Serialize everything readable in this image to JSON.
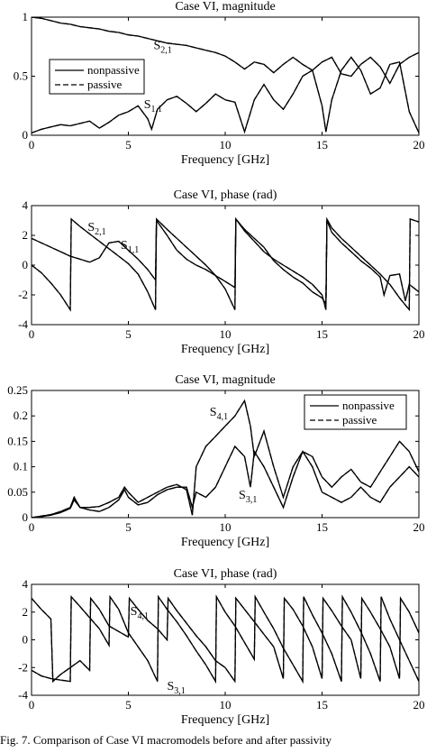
{
  "chart_data": [
    {
      "type": "line",
      "title": "Case VI, magnitude",
      "xlabel": "Frequency [GHz]",
      "ylabel": "",
      "xlim": [
        0,
        20
      ],
      "ylim": [
        0,
        1
      ],
      "xticks": [
        "0",
        "5",
        "10",
        "15",
        "20"
      ],
      "yticks": [
        "0",
        "0.5",
        "1"
      ],
      "legend": {
        "placement": "middle-left",
        "entries": [
          "nonpassive",
          "passive"
        ]
      },
      "annotations": [
        {
          "main": "S",
          "sub": "2,1",
          "x": 6.3,
          "y": 0.73
        },
        {
          "main": "S",
          "sub": "1,1",
          "x": 5.8,
          "y": 0.23
        }
      ],
      "series": [
        {
          "name": "nonpassive",
          "x": [
            0,
            0.5,
            1,
            1.5,
            2,
            2.5,
            3,
            3.5,
            4,
            4.5,
            5,
            5.5,
            6,
            6.5,
            7,
            7.5,
            8,
            8.5,
            9,
            9.5,
            10,
            10.5,
            11,
            11.5,
            12,
            12.5,
            13,
            13.5,
            14,
            14.5,
            15,
            15.5,
            16,
            16.5,
            17,
            17.5,
            18,
            18.5,
            19,
            19.5,
            20
          ],
          "y": [
            1,
            0.99,
            0.97,
            0.95,
            0.94,
            0.92,
            0.91,
            0.9,
            0.88,
            0.87,
            0.85,
            0.84,
            0.82,
            0.8,
            0.78,
            0.77,
            0.76,
            0.74,
            0.72,
            0.7,
            0.67,
            0.62,
            0.56,
            0.62,
            0.6,
            0.53,
            0.6,
            0.66,
            0.6,
            0.55,
            0.62,
            0.66,
            0.52,
            0.5,
            0.6,
            0.66,
            0.58,
            0.44,
            0.6,
            0.66,
            0.7
          ]
        },
        {
          "name": "nonpassive",
          "x": [
            0,
            0.5,
            1,
            1.5,
            2,
            2.5,
            3,
            3.5,
            4,
            4.5,
            5,
            5.5,
            6,
            6.2,
            6.5,
            7,
            7.5,
            8,
            8.5,
            9,
            9.5,
            10,
            10.5,
            11,
            11.5,
            12,
            12.5,
            13,
            13.5,
            14,
            14.5,
            15,
            15.2,
            15.5,
            16,
            16.5,
            17,
            17.5,
            18,
            18.5,
            19,
            19.5,
            20
          ],
          "y": [
            0.02,
            0.05,
            0.07,
            0.09,
            0.08,
            0.1,
            0.12,
            0.06,
            0.11,
            0.17,
            0.2,
            0.25,
            0.14,
            0.05,
            0.22,
            0.3,
            0.33,
            0.27,
            0.2,
            0.27,
            0.35,
            0.3,
            0.28,
            0.03,
            0.3,
            0.43,
            0.3,
            0.22,
            0.35,
            0.5,
            0.55,
            0.25,
            0.03,
            0.3,
            0.55,
            0.66,
            0.55,
            0.35,
            0.4,
            0.6,
            0.62,
            0.2,
            0.02
          ]
        }
      ]
    },
    {
      "type": "line",
      "title": "Case VI, phase (rad)",
      "xlabel": "Frequency [GHz]",
      "ylabel": "",
      "xlim": [
        0,
        20
      ],
      "ylim": [
        -4,
        4
      ],
      "xticks": [
        "0",
        "5",
        "10",
        "15",
        "20"
      ],
      "yticks": [
        "-4",
        "-2",
        "0",
        "2",
        "4"
      ],
      "legend": null,
      "annotations": [
        {
          "main": "S",
          "sub": "2,1",
          "x": 2.9,
          "y": 2.3
        },
        {
          "main": "S",
          "sub": "1,1",
          "x": 4.6,
          "y": 1.1
        }
      ],
      "series": [
        {
          "name": "nonpassive",
          "x": [
            0,
            0.5,
            1,
            1.5,
            2,
            2.05,
            2.5,
            3,
            3.5,
            4,
            4.5,
            5,
            5.5,
            6,
            6.4,
            6.45,
            7,
            7.5,
            8,
            8.5,
            9,
            9.5,
            10,
            10.5,
            10.55,
            11,
            11.5,
            12,
            12.5,
            13,
            13.5,
            14,
            14.5,
            15,
            15.2,
            15.25,
            15.5,
            16,
            16.5,
            17,
            17.5,
            18,
            18.5,
            19,
            19.5,
            19.55,
            20
          ],
          "y": [
            0,
            -0.5,
            -1.2,
            -2,
            -3,
            3.1,
            2.6,
            2.1,
            1.6,
            1.1,
            0.6,
            0.1,
            -0.6,
            -1.8,
            -3,
            3.1,
            2.4,
            1.8,
            1.2,
            0.6,
            0,
            -0.7,
            -1.6,
            -3,
            3.1,
            2.3,
            1.6,
            0.9,
            0.4,
            0,
            -0.4,
            -0.8,
            -1.3,
            -2,
            -3,
            3.1,
            2.5,
            1.8,
            1.2,
            0.6,
            0,
            -0.6,
            -1.3,
            -2.2,
            -3,
            3.1,
            2.9
          ]
        },
        {
          "name": "nonpassive",
          "x": [
            0,
            0.5,
            1,
            1.5,
            2,
            2.5,
            3,
            3.5,
            4,
            4.5,
            5,
            5.5,
            6,
            6.4,
            6.45,
            7,
            7.5,
            8,
            8.5,
            9,
            9.5,
            10,
            10.5,
            10.55,
            11,
            11.5,
            12,
            12.5,
            13,
            13.5,
            14,
            14.5,
            15,
            15.2,
            15.25,
            15.5,
            16,
            16.5,
            17,
            17.5,
            18,
            18.2,
            18.5,
            19,
            19.3,
            19.5,
            20
          ],
          "y": [
            1.8,
            1.5,
            1.2,
            0.9,
            0.6,
            0.4,
            0.2,
            0.5,
            1.5,
            1.6,
            1.0,
            0.4,
            -0.3,
            -1.0,
            3.0,
            2.0,
            1.0,
            0.4,
            0,
            -0.3,
            -0.7,
            -1.1,
            -1.5,
            3.1,
            2.4,
            1.8,
            1.2,
            0.3,
            -0.3,
            -0.8,
            -1.2,
            -1.8,
            -2.2,
            -2.6,
            3.0,
            2.2,
            1.5,
            0.9,
            0.3,
            -0.2,
            -0.8,
            -2.0,
            -0.7,
            -0.6,
            -2.4,
            -1.3,
            -1.8
          ]
        }
      ]
    },
    {
      "type": "line",
      "title": "Case VI, magnitude",
      "xlabel": "Frequency [GHz]",
      "ylabel": "",
      "xlim": [
        0,
        20
      ],
      "ylim": [
        0,
        0.25
      ],
      "xticks": [
        "0",
        "5",
        "10",
        "15",
        "20"
      ],
      "yticks": [
        "0",
        "0.05",
        "0.1",
        "0.15",
        "0.2",
        "0.25"
      ],
      "legend": {
        "placement": "top-right",
        "entries": [
          "nonpassive",
          "passive"
        ]
      },
      "annotations": [
        {
          "main": "S",
          "sub": "4,1",
          "x": 9.2,
          "y": 0.2
        },
        {
          "main": "S",
          "sub": "3,1",
          "x": 10.7,
          "y": 0.037
        }
      ],
      "series": [
        {
          "name": "nonpassive",
          "x": [
            0,
            0.5,
            1,
            1.5,
            2,
            2.2,
            2.5,
            3,
            3.5,
            4,
            4.5,
            4.8,
            5,
            5.5,
            6,
            6.5,
            7,
            7.5,
            8,
            8.3,
            8.5,
            9,
            9.5,
            10,
            10.5,
            11,
            11.3,
            11.5,
            12,
            12.5,
            13,
            13.5,
            14,
            14.5,
            15,
            15.5,
            16,
            16.5,
            17,
            17.5,
            18,
            18.5,
            19,
            19.5,
            20
          ],
          "y": [
            0,
            0.003,
            0.006,
            0.012,
            0.02,
            0.04,
            0.02,
            0.02,
            0.022,
            0.03,
            0.04,
            0.06,
            0.05,
            0.03,
            0.04,
            0.05,
            0.06,
            0.065,
            0.055,
            0.005,
            0.1,
            0.14,
            0.16,
            0.18,
            0.2,
            0.23,
            0.18,
            0.12,
            0.17,
            0.1,
            0.04,
            0.1,
            0.13,
            0.12,
            0.08,
            0.06,
            0.08,
            0.095,
            0.07,
            0.06,
            0.09,
            0.12,
            0.15,
            0.13,
            0.09
          ]
        },
        {
          "name": "nonpassive",
          "x": [
            0,
            0.5,
            1,
            1.5,
            2,
            2.2,
            2.5,
            3,
            3.5,
            4,
            4.5,
            4.8,
            5,
            5.5,
            6,
            6.5,
            7,
            7.5,
            8,
            8.3,
            8.5,
            9,
            9.5,
            10,
            10.5,
            11,
            11.3,
            11.5,
            12,
            12.5,
            13,
            13.5,
            14,
            14.5,
            15,
            15.5,
            16,
            16.5,
            17,
            17.5,
            18,
            18.5,
            19,
            19.5,
            20
          ],
          "y": [
            0,
            0.002,
            0.005,
            0.01,
            0.018,
            0.035,
            0.02,
            0.015,
            0.012,
            0.02,
            0.035,
            0.055,
            0.04,
            0.025,
            0.03,
            0.045,
            0.055,
            0.06,
            0.06,
            0.02,
            0.05,
            0.04,
            0.06,
            0.1,
            0.14,
            0.12,
            0.06,
            0.13,
            0.1,
            0.06,
            0.02,
            0.08,
            0.13,
            0.1,
            0.05,
            0.04,
            0.03,
            0.04,
            0.06,
            0.04,
            0.03,
            0.06,
            0.08,
            0.1,
            0.08
          ]
        }
      ]
    },
    {
      "type": "line",
      "title": "Case VI, phase (rad)",
      "xlabel": "Frequency [GHz]",
      "ylabel": "",
      "xlim": [
        0,
        20
      ],
      "ylim": [
        -4,
        4
      ],
      "xticks": [
        "0",
        "5",
        "10",
        "15",
        "20"
      ],
      "yticks": [
        "-4",
        "-2",
        "0",
        "2",
        "4"
      ],
      "legend": null,
      "annotations": [
        {
          "main": "S",
          "sub": "4,1",
          "x": 5.1,
          "y": 1.8
        },
        {
          "main": "S",
          "sub": "3,1",
          "x": 7.0,
          "y": -3.6
        }
      ],
      "series": [
        {
          "name": "nonpassive",
          "x": [
            0,
            0.5,
            1,
            1.1,
            1.5,
            2,
            2.5,
            3,
            3.05,
            3.5,
            4,
            4.5,
            5,
            5.05,
            5.5,
            6,
            6.5,
            7,
            7.05,
            7.5,
            8,
            8.5,
            9,
            9.5,
            10,
            10.5,
            10.55,
            11,
            11.5,
            12,
            12.5,
            13,
            13.05,
            13.5,
            14,
            14.5,
            15,
            15.05,
            15.5,
            16,
            16.5,
            17,
            17.05,
            17.5,
            18,
            18.5,
            19,
            19.05,
            19.5,
            20
          ],
          "y": [
            3,
            2.2,
            1.5,
            -3,
            -2.5,
            -2,
            -1.5,
            -2.2,
            3,
            2.2,
            1,
            0.6,
            0.2,
            3,
            2.2,
            1.4,
            0.8,
            0,
            3,
            2.1,
            1.2,
            0.3,
            -0.5,
            -1.5,
            -2,
            -3,
            3,
            2.2,
            1.3,
            0.4,
            -0.5,
            -2.8,
            3,
            2.2,
            1,
            -0.5,
            -2.8,
            3,
            2.1,
            1,
            0,
            -2.8,
            3,
            2,
            0.8,
            -0.5,
            -2.8,
            3,
            2,
            0.5
          ]
        },
        {
          "name": "nonpassive",
          "x": [
            0,
            0.5,
            1,
            1.5,
            2,
            2.05,
            2.5,
            3,
            3.5,
            4,
            4.05,
            4.5,
            5,
            5.5,
            6,
            6.5,
            6.55,
            7,
            7.5,
            8,
            8.5,
            9,
            9.5,
            9.55,
            10,
            10.5,
            11,
            11.5,
            11.55,
            12,
            12.5,
            13,
            13.5,
            14,
            14.05,
            14.5,
            15,
            15.5,
            16,
            16.05,
            16.5,
            17,
            17.5,
            18,
            18.05,
            18.5,
            19,
            19.5,
            20
          ],
          "y": [
            -2.2,
            -2.6,
            -2.8,
            -2.9,
            -3,
            3.1,
            2.4,
            1.6,
            0.8,
            -0.4,
            3.1,
            2.2,
            0.5,
            -0.5,
            -1.5,
            -3,
            3.1,
            2.2,
            1.3,
            0.3,
            -0.8,
            -1.8,
            -3,
            3.1,
            2,
            1,
            -0.2,
            -1.4,
            3.1,
            2,
            0.8,
            -0.6,
            -1.8,
            -3,
            3.1,
            1.8,
            0.5,
            -1,
            -3,
            3.1,
            2,
            0.6,
            -1,
            -3,
            3.1,
            1.5,
            0,
            -1.5,
            -3
          ]
        }
      ]
    }
  ],
  "caption": "Fig. 7.   Comparison of Case VI macromodels before and after passivity"
}
